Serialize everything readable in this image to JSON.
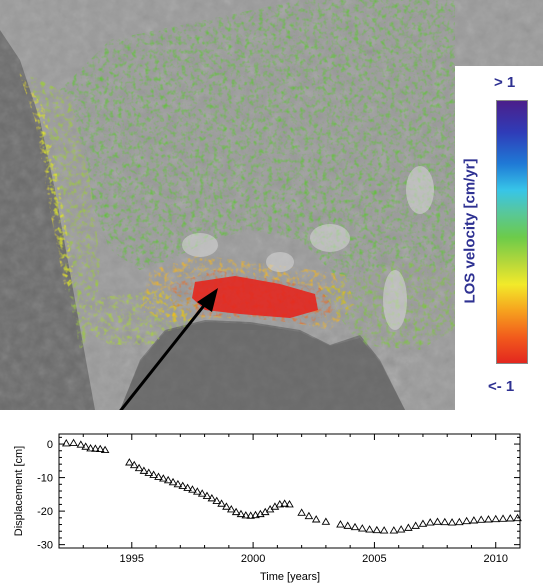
{
  "colorbar": {
    "title": "LOS velocity [cm/yr]",
    "max_label": "> 1",
    "min_label": "<- 1",
    "stops": [
      "#4b1f8a",
      "#2f3cb8",
      "#1f7ad6",
      "#37c5e8",
      "#56c7a0",
      "#6ccb4a",
      "#b8d83a",
      "#f2ea2a",
      "#f6a21e",
      "#f25c1c",
      "#e3271f"
    ]
  },
  "chart_data": {
    "type": "scatter",
    "marker": "open-triangle",
    "xlabel": "Time [years]",
    "ylabel": "Displacement [cm]",
    "xlim": [
      1992,
      2011
    ],
    "ylim": [
      -31,
      3
    ],
    "xticks": [
      1995,
      2000,
      2005,
      2010
    ],
    "yticks": [
      0,
      -10,
      -20,
      -30
    ],
    "x": [
      1992.3,
      1992.6,
      1992.9,
      1993.1,
      1993.3,
      1993.5,
      1993.7,
      1993.9,
      1994.9,
      1995.1,
      1995.3,
      1995.5,
      1995.7,
      1995.9,
      1996.1,
      1996.3,
      1996.5,
      1996.7,
      1996.9,
      1997.1,
      1997.3,
      1997.5,
      1997.7,
      1997.9,
      1998.1,
      1998.3,
      1998.5,
      1998.7,
      1998.9,
      1999.1,
      1999.3,
      1999.5,
      1999.7,
      1999.9,
      2000.1,
      2000.3,
      2000.5,
      2000.7,
      2000.9,
      2001.1,
      2001.3,
      2001.5,
      2002.0,
      2002.3,
      2002.6,
      2003.0,
      2003.6,
      2003.9,
      2004.2,
      2004.5,
      2004.8,
      2005.1,
      2005.4,
      2005.8,
      2006.1,
      2006.4,
      2006.7,
      2007.0,
      2007.3,
      2007.6,
      2007.9,
      2008.2,
      2008.5,
      2008.8,
      2009.1,
      2009.4,
      2009.7,
      2010.0,
      2010.3,
      2010.6,
      2010.9
    ],
    "y": [
      0.2,
      0.3,
      -0.2,
      -0.8,
      -1.3,
      -1.4,
      -1.5,
      -1.8,
      -5.5,
      -6.3,
      -7.2,
      -8.0,
      -8.6,
      -9.2,
      -9.8,
      -10.3,
      -10.8,
      -11.4,
      -12.0,
      -12.5,
      -13.1,
      -13.6,
      -14.2,
      -14.8,
      -15.5,
      -16.2,
      -17.0,
      -17.8,
      -18.7,
      -19.5,
      -20.3,
      -20.9,
      -21.3,
      -21.4,
      -21.2,
      -20.9,
      -20.3,
      -19.5,
      -18.7,
      -18.0,
      -17.8,
      -18.0,
      -20.5,
      -21.5,
      -22.5,
      -23.2,
      -24.0,
      -24.4,
      -24.8,
      -25.2,
      -25.5,
      -25.7,
      -25.8,
      -25.8,
      -25.5,
      -25.0,
      -24.4,
      -23.8,
      -23.4,
      -23.2,
      -23.3,
      -23.4,
      -23.3,
      -23.0,
      -22.8,
      -22.6,
      -22.5,
      -22.4,
      -22.3,
      -22.2,
      -22.1
    ]
  }
}
